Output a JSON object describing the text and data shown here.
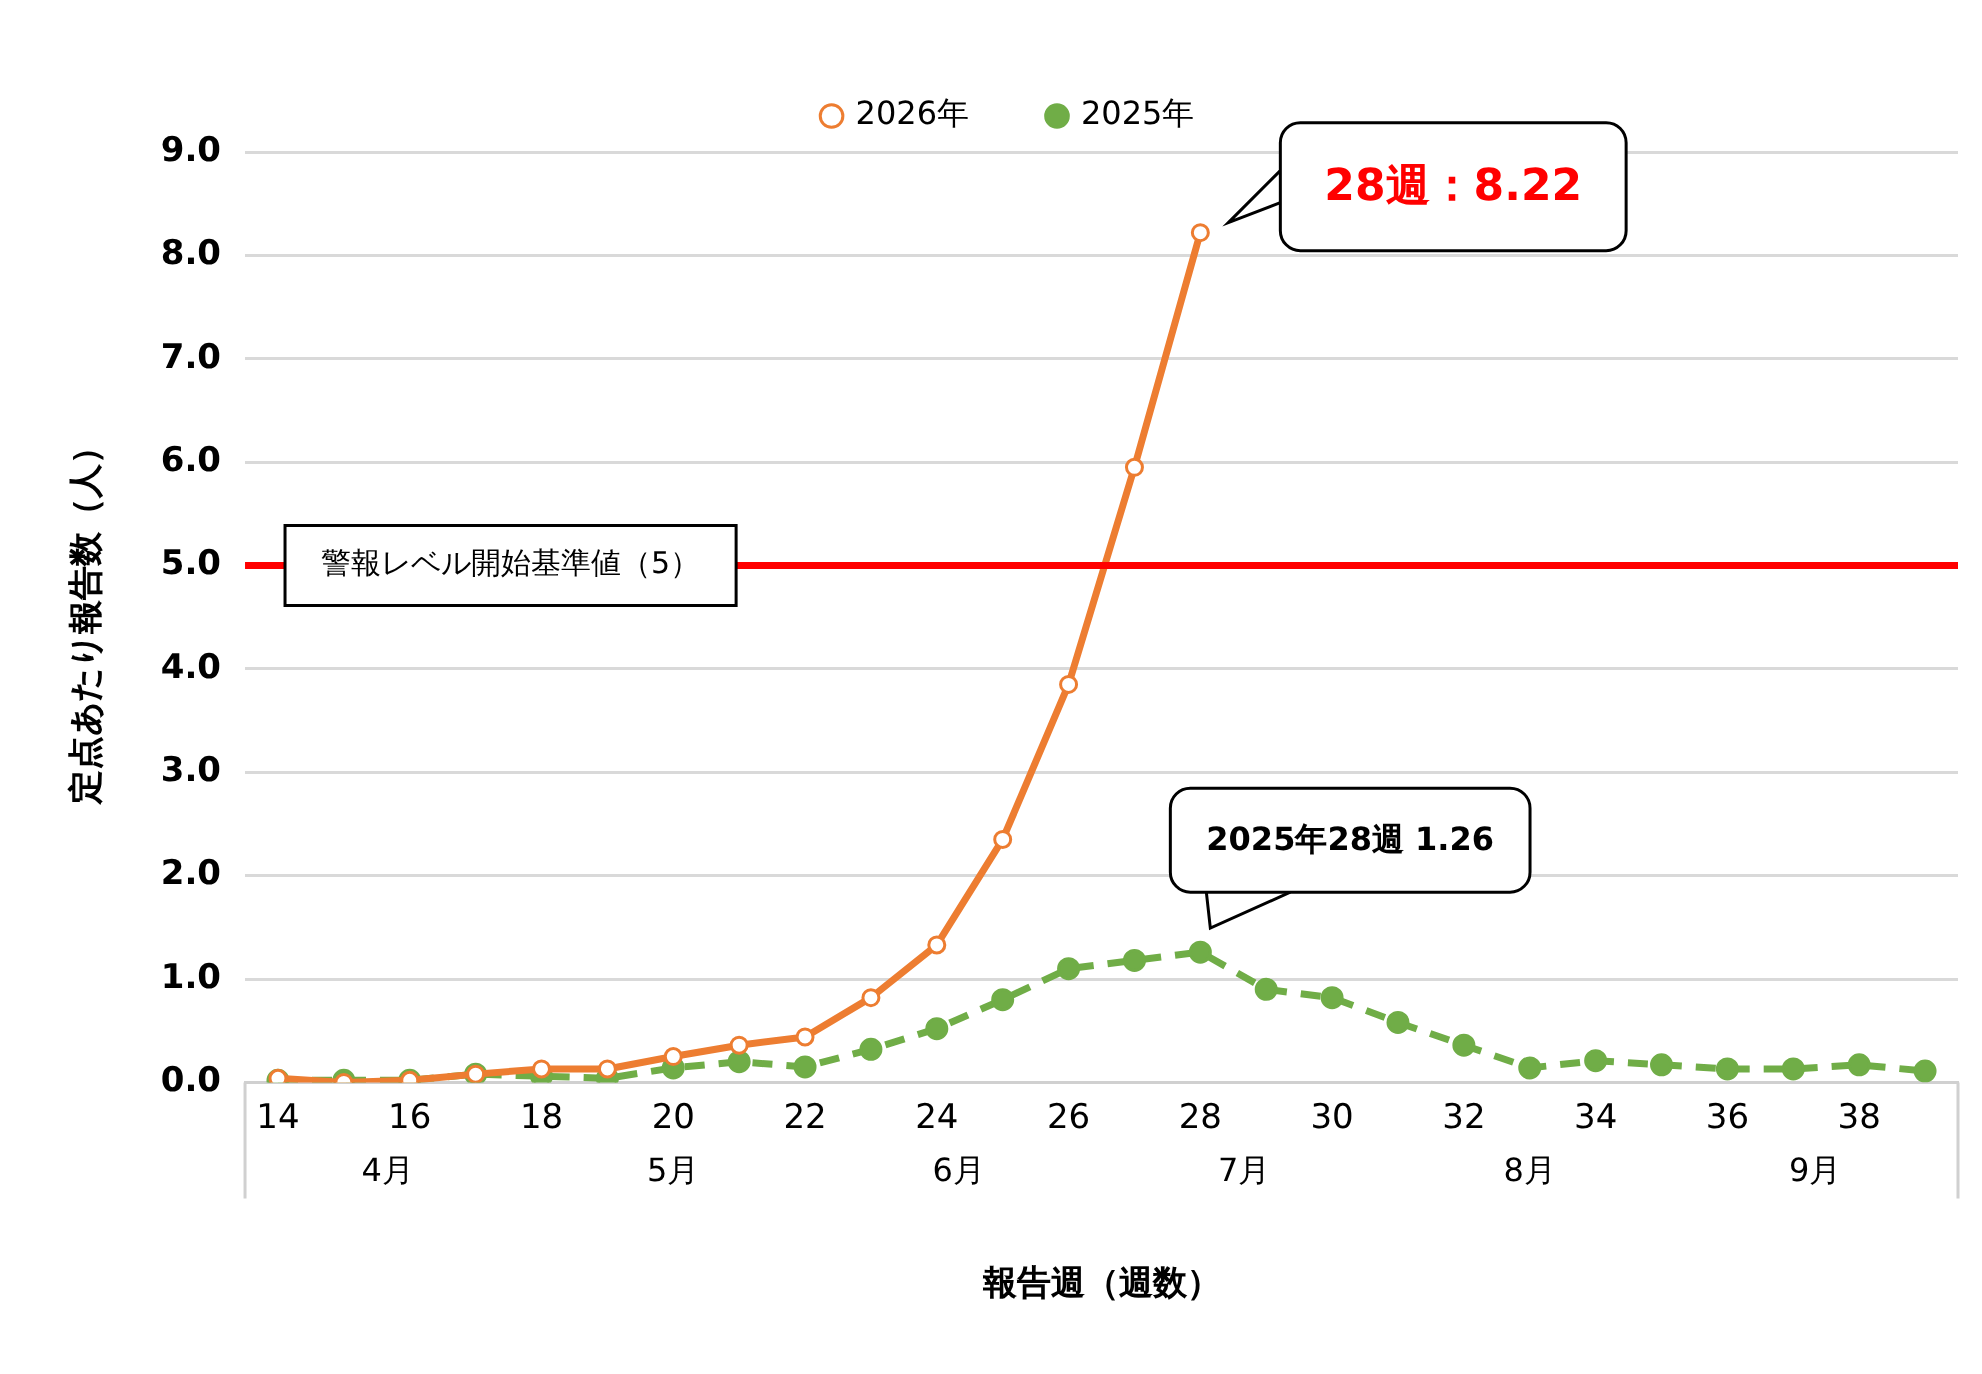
{
  "chart_data": {
    "type": "line",
    "xlabel": "報告週（週数）",
    "ylabel": "定点あたり報告数（人）",
    "categories": [
      "14",
      null,
      "16",
      null,
      "18",
      null,
      "20",
      null,
      "22",
      null,
      "24",
      null,
      "26",
      null,
      "28",
      null,
      "30",
      null,
      "32",
      null,
      "34",
      null,
      "36",
      null,
      "38",
      null
    ],
    "series": [
      {
        "name": "2026年",
        "color": "#ed7d31",
        "marker": "circle",
        "line_style": "solid",
        "values": [
          0.04,
          0.0,
          0.02,
          0.08,
          0.13,
          0.13,
          0.25,
          0.36,
          0.44,
          0.82,
          1.33,
          2.35,
          3.85,
          5.95,
          8.22,
          null,
          null,
          null,
          null,
          null,
          null,
          null,
          null,
          null,
          null,
          null
        ]
      },
      {
        "name": "2025年",
        "color": "#70ad47",
        "marker": "circle",
        "line_style": "dashed",
        "values": [
          0.02,
          0.02,
          0.02,
          0.08,
          0.06,
          0.04,
          0.14,
          0.2,
          0.15,
          0.32,
          0.52,
          0.8,
          1.1,
          1.18,
          1.26,
          0.9,
          0.82,
          0.58,
          0.36,
          0.14,
          0.21,
          0.17,
          0.13,
          0.13,
          0.17,
          0.11
        ]
      }
    ],
    "ylim": [
      0,
      9
    ],
    "yticks": [
      {
        "value": 0,
        "label": "0.0"
      },
      {
        "value": 1,
        "label": "1.0"
      },
      {
        "value": 2,
        "label": "2.0"
      },
      {
        "value": 3,
        "label": "3.0"
      },
      {
        "value": 4,
        "label": "4.0"
      },
      {
        "value": 5,
        "label": "5.0"
      },
      {
        "value": 6,
        "label": "6.0"
      },
      {
        "value": 7,
        "label": "7.0"
      },
      {
        "value": 8,
        "label": "8.0"
      },
      {
        "value": 9,
        "label": "9.0"
      }
    ],
    "ref_lines": [
      {
        "axis": "y",
        "value": 5,
        "label": "警報レベル開始基準値（5）",
        "color": "#ff0000"
      }
    ],
    "annotations": [
      {
        "text": "28週：8.22",
        "x": "28",
        "y": 8.22
      },
      {
        "text": "2025年28週 1.26",
        "x": "28",
        "y": 1.26
      },
      "4月",
      "5月",
      "6月",
      "7月",
      "8月",
      "9月"
    ],
    "grid": "y",
    "legend": "top"
  }
}
